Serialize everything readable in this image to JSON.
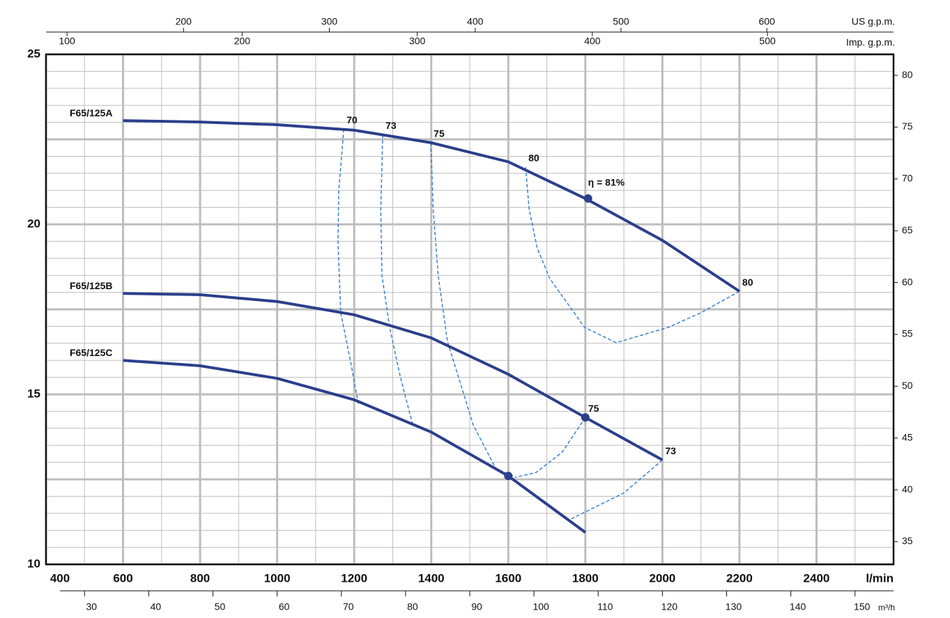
{
  "chart_data": {
    "type": "line",
    "xlabel": "l/min",
    "xlim": [
      400,
      2600
    ],
    "xticks": [
      400,
      600,
      800,
      1000,
      1200,
      1400,
      1600,
      1800,
      2000,
      2200,
      2400
    ],
    "xgrid_minor": [
      500,
      700,
      900,
      1100,
      1300,
      1500,
      1700,
      1900,
      2100,
      2300,
      2500
    ],
    "ylim": [
      10,
      25
    ],
    "yticks": [
      10,
      15,
      20,
      25
    ],
    "ygrid_major": [
      12.5,
      17.5,
      22.5
    ],
    "ygrid_minor": [
      10.5,
      11,
      11.5,
      12,
      12.5,
      13,
      13.5,
      14,
      14.5,
      15,
      15.5,
      16,
      16.5,
      17,
      17.5,
      18,
      18.5,
      19,
      19.5,
      20,
      20.5,
      21,
      21.5,
      22,
      22.5,
      23,
      23.5,
      24,
      24.5
    ],
    "y2lim": [
      32.81,
      82.02
    ],
    "y2ticks": [
      35,
      40,
      45,
      50,
      55,
      60,
      65,
      70,
      75,
      80
    ],
    "x2label": "m³/h",
    "x2lim": [
      24,
      156
    ],
    "x2ticks": [
      30,
      40,
      50,
      60,
      70,
      80,
      90,
      100,
      110,
      120,
      130,
      140,
      150
    ],
    "x3label": "US g.p.m.",
    "x3lim": [
      105.7,
      686.9
    ],
    "x3ticks": [
      200,
      300,
      400,
      500,
      600
    ],
    "x4label": "Imp. g.p.m.",
    "x4lim": [
      88,
      572
    ],
    "x4ticks": [
      100,
      200,
      300,
      400,
      500
    ],
    "grid": true,
    "series": [
      {
        "name": "F65/125A",
        "color": "#2b3f8c",
        "x": [
          600,
          800,
          1000,
          1200,
          1400,
          1600,
          1800,
          2000,
          2200
        ],
        "values": [
          23.05,
          23.01,
          22.93,
          22.77,
          22.4,
          21.84,
          20.76,
          19.53,
          18.03
        ]
      },
      {
        "name": "F65/125B",
        "color": "#2b3f8c",
        "x": [
          600,
          800,
          1000,
          1200,
          1400,
          1600,
          1800,
          2000
        ],
        "values": [
          17.97,
          17.93,
          17.73,
          17.34,
          16.66,
          15.59,
          14.32,
          13.07
        ]
      },
      {
        "name": "F65/125C",
        "color": "#2b3f8c",
        "x": [
          600,
          800,
          1000,
          1200,
          1400,
          1600,
          1800
        ],
        "values": [
          16.0,
          15.84,
          15.47,
          14.84,
          13.89,
          12.6,
          10.94
        ]
      }
    ],
    "efficiency_color": "#3a7fd0",
    "efficiency_curves": [
      {
        "name": "70",
        "x": [
          1173,
          1160,
          1158,
          1165,
          1190,
          1211
        ],
        "values": [
          22.8,
          21.0,
          19.5,
          17.4,
          16.0,
          14.7
        ]
      },
      {
        "name": "73",
        "x": [
          1274,
          1269,
          1272,
          1292,
          1320,
          1352
        ],
        "values": [
          22.64,
          20.45,
          18.5,
          16.97,
          15.5,
          14.1
        ]
      },
      {
        "name": "73",
        "x": [
          2000,
          1900,
          1762
        ],
        "values": [
          13.07,
          12.1,
          11.33
        ]
      },
      {
        "name": "75",
        "x": [
          1399,
          1405,
          1418,
          1442,
          1509,
          1567,
          1618
        ],
        "values": [
          22.4,
          20.45,
          18.5,
          16.56,
          14.1,
          12.83,
          12.56
        ]
      },
      {
        "name": "75",
        "x": [
          1800,
          1740,
          1672,
          1618
        ],
        "values": [
          14.32,
          13.3,
          12.7,
          12.56
        ]
      },
      {
        "name": "80",
        "x": [
          1645,
          1654,
          1675,
          1708,
          1798,
          1880
        ],
        "values": [
          21.68,
          20.45,
          19.3,
          18.4,
          16.97,
          16.52
        ]
      },
      {
        "name": "80",
        "x": [
          2200,
          2100,
          2015,
          1880
        ],
        "values": [
          18.03,
          17.4,
          16.97,
          16.52
        ]
      }
    ],
    "points": [
      {
        "x": 1807,
        "y": 20.76,
        "label": "η = 81%"
      },
      {
        "x": 1800,
        "y": 14.32
      },
      {
        "x": 1600,
        "y": 12.6
      }
    ]
  }
}
